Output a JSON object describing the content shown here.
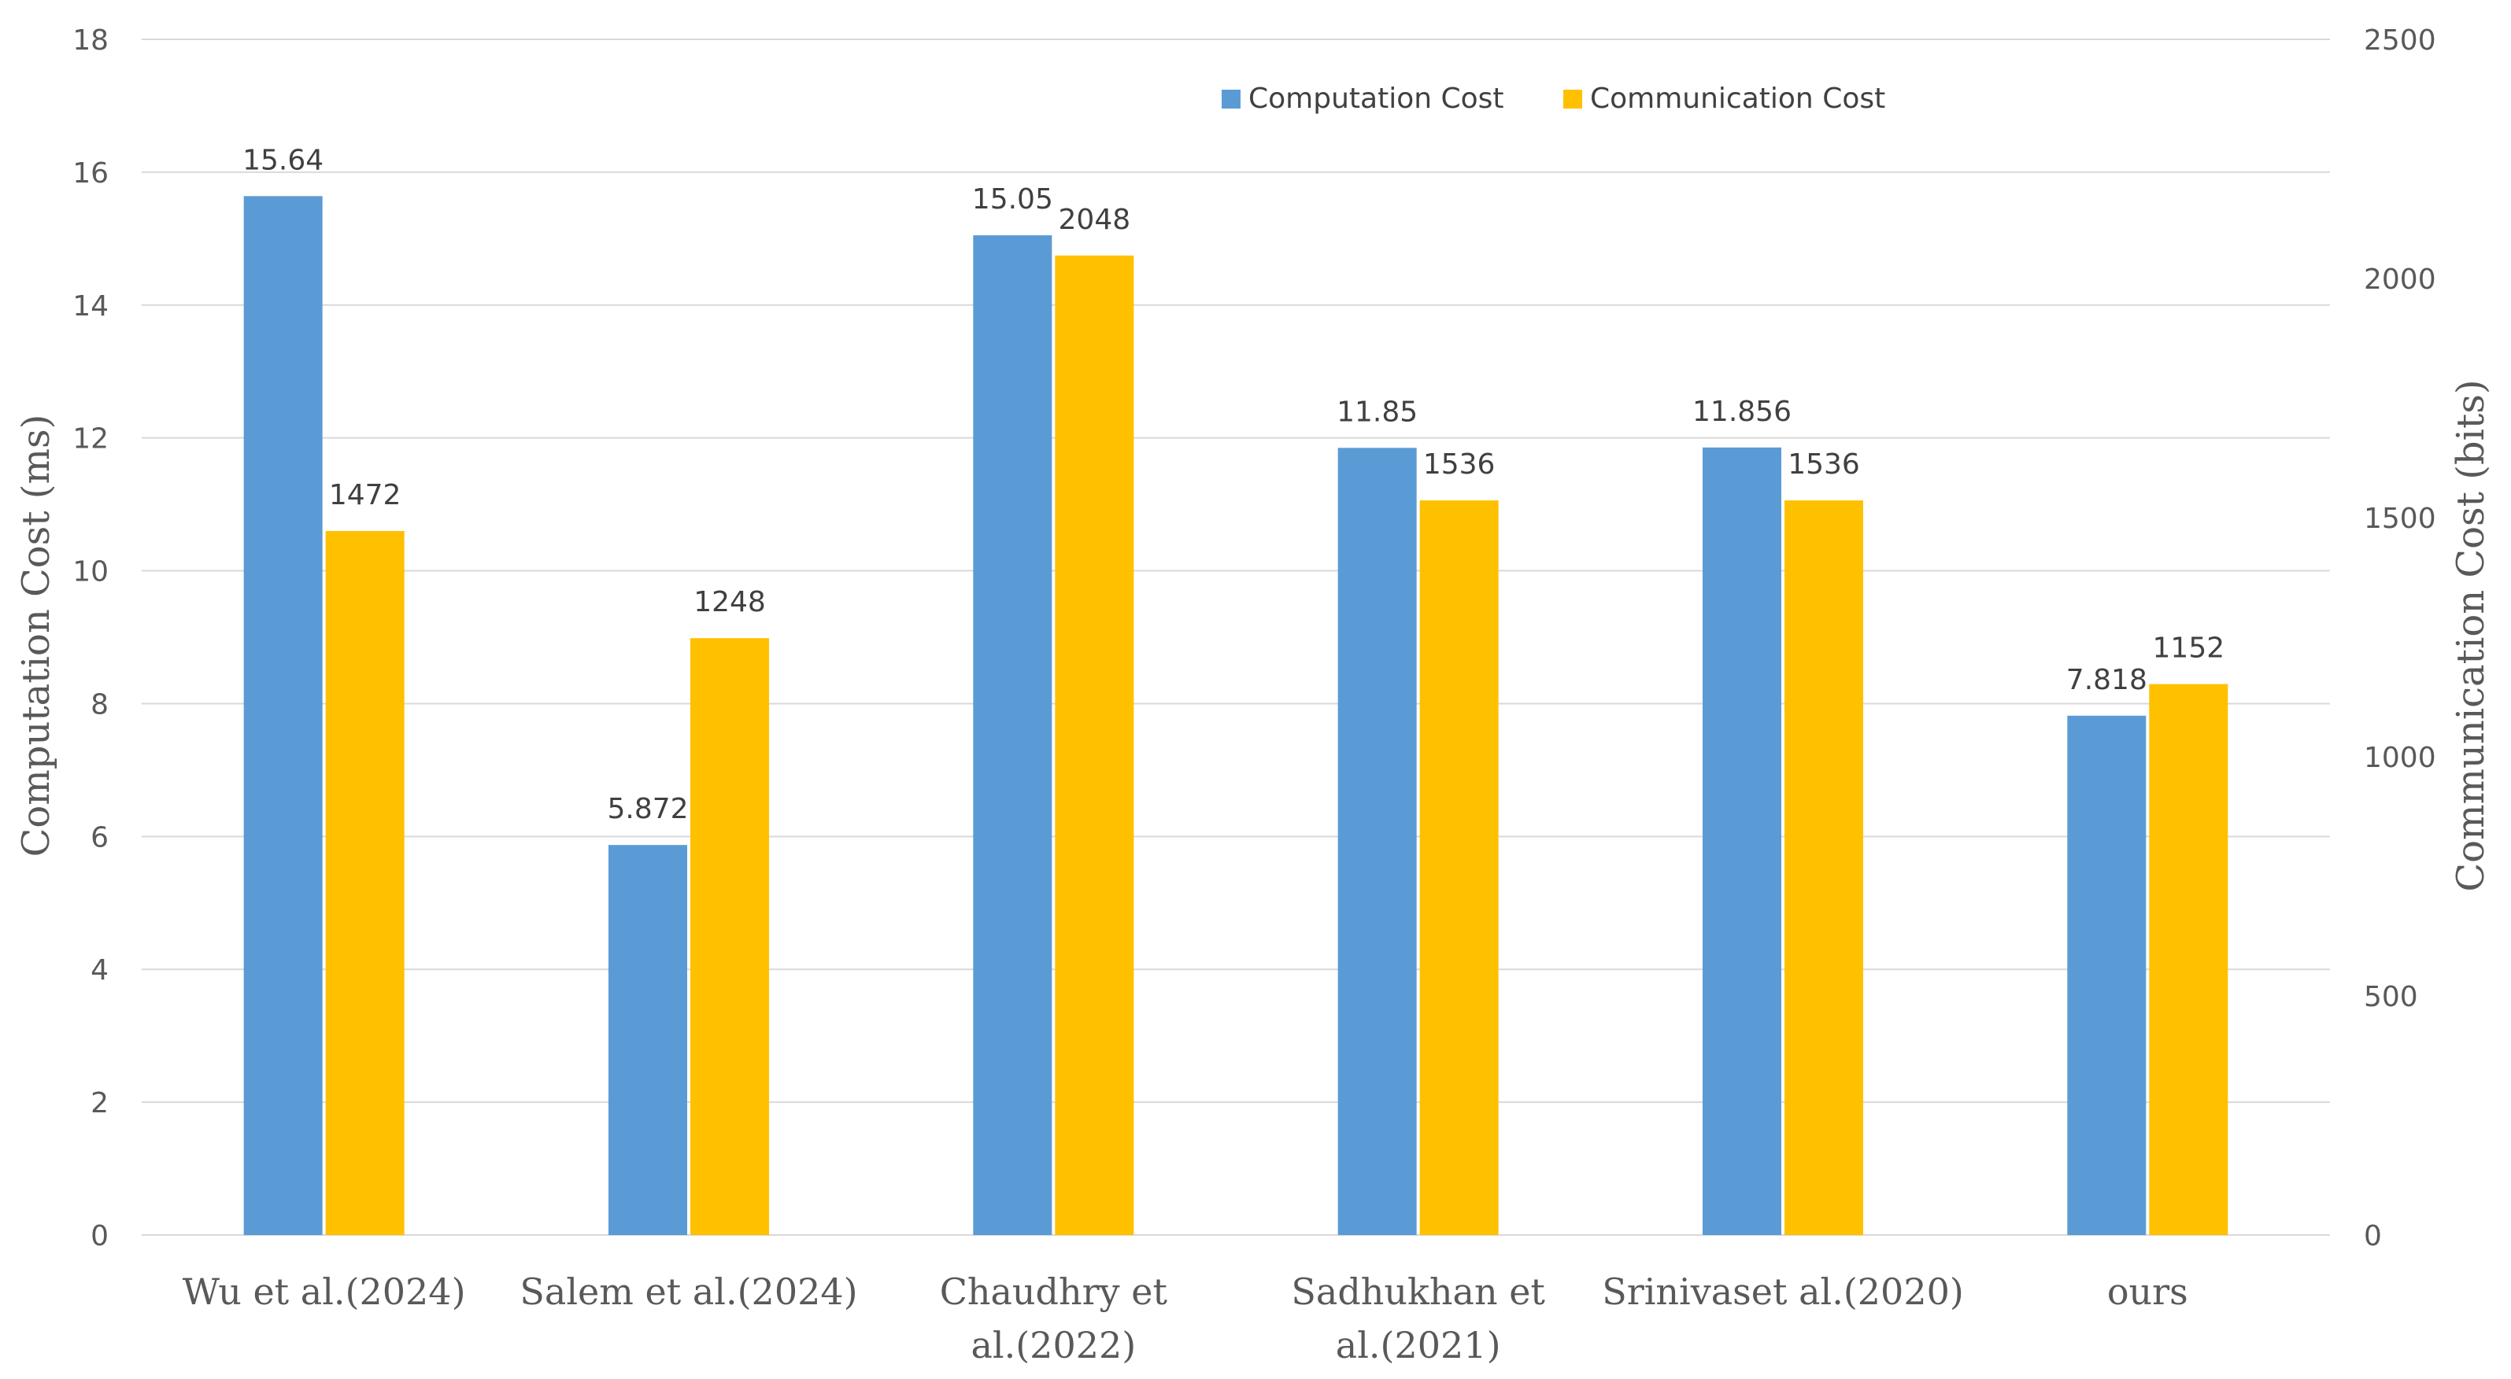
{
  "chart_data": {
    "type": "bar",
    "title": "",
    "categories": [
      [
        "Wu et al.(2024)"
      ],
      [
        "Salem  et al.(2024)"
      ],
      [
        "Chaudhry et",
        "al.(2022)"
      ],
      [
        "Sadhukhan et",
        "al.(2021)"
      ],
      [
        "Srinivaset al.(2020)"
      ],
      [
        "ours"
      ]
    ],
    "series": [
      {
        "name": "Computation Cost",
        "axis": "left",
        "color": "#5B9BD5",
        "values": [
          15.64,
          5.872,
          15.05,
          11.85,
          11.856,
          7.818
        ],
        "labels": [
          "15.64",
          "5.872",
          "15.05",
          "11.85",
          "11.856",
          "7.818"
        ]
      },
      {
        "name": "Communication Cost",
        "axis": "right",
        "color": "#FFC000",
        "values": [
          1472,
          1248,
          2048,
          1536,
          1536,
          1152
        ],
        "labels": [
          "1472",
          "1248",
          "2048",
          "1536",
          "1536",
          "1152"
        ]
      }
    ],
    "ylabel": "Computation Cost (ms)",
    "ylim": [
      0,
      18
    ],
    "yticks": [
      "0",
      "2",
      "4",
      "6",
      "8",
      "10",
      "12",
      "14",
      "16",
      "18"
    ],
    "y2label": "Communication Cost (bits)",
    "y2lim": [
      0,
      2500
    ],
    "y2ticks": [
      "0",
      "500",
      "1000",
      "1500",
      "2000",
      "2500"
    ],
    "grid": true,
    "legend_position": "top-right",
    "gridline_color": "#D9D9D9"
  }
}
